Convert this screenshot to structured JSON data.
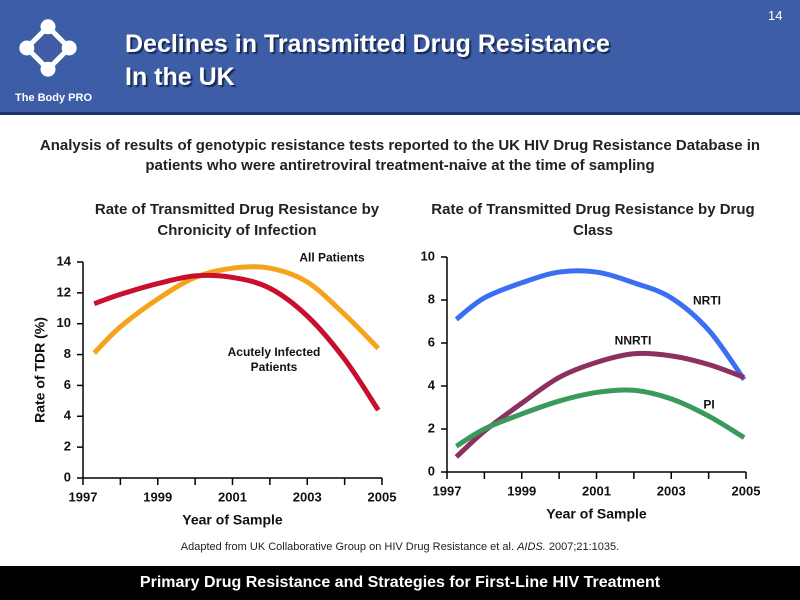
{
  "header": {
    "logo_text": "The Body PRO",
    "title_lines": [
      "Declines in Transmitted Drug Resistance",
      "In the UK"
    ],
    "page_number": "14"
  },
  "intro": "Analysis of results of genotypic resistance tests reported to the UK HIV Drug Resistance Database in patients who were antiretroviral treatment-naive at the time of sampling",
  "chart_data": [
    {
      "type": "line",
      "title": "Rate of Transmitted Drug Resistance by Chronicity of Infection",
      "x_label": "Year of Sample",
      "y_label": "Rate of TDR (%)",
      "x": [
        1997.3,
        1998,
        1999,
        2000,
        2001,
        2002,
        2003,
        2004,
        2004.9
      ],
      "series": [
        {
          "name": "All Patients",
          "color": "#f5a31a",
          "values": [
            8.1,
            9.8,
            11.6,
            13.0,
            13.6,
            13.6,
            12.7,
            10.6,
            8.4
          ]
        },
        {
          "name": "Acutely Infected Patients",
          "color": "#c8102e",
          "values": [
            11.3,
            11.9,
            12.6,
            13.1,
            13.0,
            12.3,
            10.5,
            7.7,
            4.4
          ]
        }
      ],
      "xlim": [
        1997,
        2005
      ],
      "xticks": [
        1997,
        1999,
        2001,
        2003,
        2005
      ],
      "ylim": [
        0,
        14
      ],
      "yticks": [
        0,
        2,
        4,
        6,
        8,
        10,
        12,
        14
      ]
    },
    {
      "type": "line",
      "title": "Rate of Transmitted Drug Resistance by Drug Class",
      "x_label": "Year of Sample",
      "x": [
        1997.25,
        1998,
        1999,
        2000,
        2001,
        2002,
        2003,
        2004,
        2004.95
      ],
      "series": [
        {
          "name": "NRTI",
          "color": "#3b6ff2",
          "values": [
            7.1,
            8.1,
            8.8,
            9.3,
            9.3,
            8.8,
            8.1,
            6.6,
            4.3
          ]
        },
        {
          "name": "NNRTI",
          "color": "#8e305f",
          "values": [
            0.7,
            1.9,
            3.2,
            4.4,
            5.1,
            5.5,
            5.4,
            5.0,
            4.4
          ]
        },
        {
          "name": "PI",
          "color": "#3a9a5c",
          "values": [
            1.2,
            2.0,
            2.7,
            3.3,
            3.7,
            3.8,
            3.4,
            2.6,
            1.6
          ]
        }
      ],
      "xlim": [
        1997,
        2005
      ],
      "xticks": [
        1997,
        1999,
        2001,
        2003,
        2005
      ],
      "ylim": [
        0,
        10
      ],
      "yticks": [
        0,
        2,
        4,
        6,
        8,
        10
      ]
    }
  ],
  "citation": {
    "text": "Adapted from UK Collaborative Group on HIV Drug Resistance et al.",
    "journal": "AIDS.",
    "details": "2007;21:1035."
  },
  "footer": "Primary Drug Resistance and Strategies for First-Line HIV Treatment"
}
